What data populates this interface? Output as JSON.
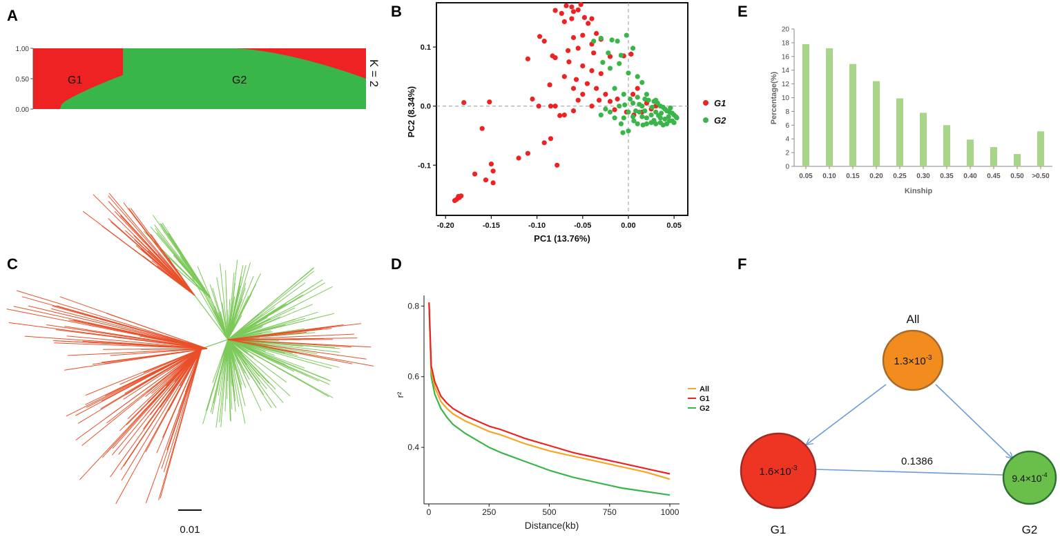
{
  "panels": {
    "A": "A",
    "B": "B",
    "C": "C",
    "D": "D",
    "E": "E",
    "F": "F"
  },
  "colors": {
    "g1": "#ee2222",
    "g2": "#3ab54a",
    "all": "#f5a623",
    "tree_red": "#e8502a",
    "tree_green": "#7cc95a",
    "bar": "#a8d58a",
    "node_all": "#f28c1e",
    "node_g1": "#ee3524",
    "node_g2": "#6abf4b",
    "edge": "#6a9bd8"
  },
  "structure": {
    "type": "stacked-bar",
    "k_label": "K = 2",
    "yticks": [
      "1.00",
      "0.50",
      "0.00"
    ],
    "group_labels": [
      "G1",
      "G2"
    ],
    "g1_fraction": 0.27
  },
  "tree": {
    "scale_label": "0.01"
  },
  "chart_data": [
    {
      "panel": "B",
      "type": "scatter",
      "xlabel": "PC1 (13.76%)",
      "ylabel": "PC2 (8.34%)",
      "xlim": [
        -0.21,
        0.065
      ],
      "ylim": [
        -0.185,
        0.175
      ],
      "xticks": [
        -0.2,
        -0.15,
        -0.1,
        -0.05,
        0.0,
        0.05
      ],
      "xtick_labels": [
        "-0.20",
        "-0.15",
        "-0.10",
        "-0.05",
        "0.00",
        "0.05"
      ],
      "yticks": [
        0.1,
        0.0,
        -0.1
      ],
      "ytick_labels": [
        "0.1",
        "0.0",
        "-0.1"
      ],
      "legend": [
        "G1",
        "G2"
      ],
      "series": [
        {
          "name": "G1",
          "points": [
            [
              -0.068,
              0.17
            ],
            [
              -0.062,
              0.168
            ],
            [
              -0.052,
              0.172
            ],
            [
              -0.06,
              0.16
            ],
            [
              -0.08,
              0.162
            ],
            [
              -0.055,
              0.163
            ],
            [
              -0.073,
              0.157
            ],
            [
              -0.048,
              0.15
            ],
            [
              -0.062,
              0.148
            ],
            [
              -0.04,
              0.148
            ],
            [
              -0.07,
              0.143
            ],
            [
              -0.044,
              0.14
            ],
            [
              -0.035,
              0.123
            ],
            [
              -0.05,
              0.12
            ],
            [
              -0.06,
              0.116
            ],
            [
              -0.03,
              0.113
            ],
            [
              -0.04,
              0.105
            ],
            [
              -0.055,
              0.098
            ],
            [
              -0.038,
              0.09
            ],
            [
              -0.02,
              0.084
            ],
            [
              -0.083,
              0.085
            ],
            [
              -0.066,
              0.094
            ],
            [
              -0.092,
              0.11
            ],
            [
              -0.097,
              0.118
            ],
            [
              -0.11,
              0.08
            ],
            [
              -0.08,
              0.082
            ],
            [
              -0.065,
              0.075
            ],
            [
              -0.05,
              0.068
            ],
            [
              -0.04,
              0.06
            ],
            [
              -0.03,
              0.055
            ],
            [
              -0.057,
              0.045
            ],
            [
              -0.045,
              0.038
            ],
            [
              -0.035,
              0.03
            ],
            [
              -0.086,
              0.036
            ],
            [
              -0.07,
              0.05
            ],
            [
              -0.06,
              0.03
            ],
            [
              -0.05,
              0.02
            ],
            [
              -0.025,
              0.02
            ],
            [
              -0.032,
              0.01
            ],
            [
              -0.02,
              0.008
            ],
            [
              -0.012,
              0.012
            ],
            [
              -0.015,
              -0.006
            ],
            [
              -0.04,
              0.0
            ],
            [
              -0.055,
              0.01
            ],
            [
              -0.06,
              -0.008
            ],
            [
              -0.08,
              0.0
            ],
            [
              -0.085,
              0.0
            ],
            [
              -0.098,
              0.0
            ],
            [
              -0.07,
              -0.015
            ],
            [
              -0.075,
              -0.016
            ],
            [
              -0.105,
              0.012
            ],
            [
              -0.18,
              0.006
            ],
            [
              -0.152,
              0.007
            ],
            [
              -0.16,
              -0.038
            ],
            [
              -0.12,
              -0.088
            ],
            [
              -0.11,
              -0.08
            ],
            [
              -0.092,
              -0.062
            ],
            [
              -0.085,
              -0.055
            ],
            [
              -0.078,
              -0.1
            ],
            [
              -0.15,
              -0.098
            ],
            [
              -0.148,
              -0.11
            ],
            [
              -0.156,
              -0.125
            ],
            [
              -0.148,
              -0.13
            ],
            [
              -0.168,
              -0.115
            ],
            [
              -0.185,
              -0.155
            ],
            [
              -0.188,
              -0.158
            ],
            [
              -0.19,
              -0.16
            ],
            [
              -0.183,
              -0.152
            ],
            [
              -0.186,
              -0.153
            ],
            [
              0.005,
              0.02
            ],
            [
              0.01,
              0.03
            ],
            [
              0.02,
              0.005
            ],
            [
              0.03,
              0.0
            ],
            [
              0.015,
              -0.01
            ],
            [
              -0.005,
              0.085
            ],
            [
              0.003,
              0.088
            ],
            [
              -0.002,
              -0.01
            ],
            [
              0.006,
              -0.015
            ],
            [
              0.025,
              -0.005
            ]
          ]
        },
        {
          "name": "G2",
          "points": [
            [
              -0.038,
              0.11
            ],
            [
              -0.03,
              0.115
            ],
            [
              -0.018,
              0.112
            ],
            [
              -0.012,
              0.11
            ],
            [
              -0.002,
              0.12
            ],
            [
              0.005,
              0.098
            ],
            [
              -0.008,
              0.086
            ],
            [
              -0.022,
              0.09
            ],
            [
              -0.028,
              0.074
            ],
            [
              -0.02,
              0.064
            ],
            [
              -0.01,
              0.072
            ],
            [
              0.0,
              0.056
            ],
            [
              0.01,
              0.05
            ],
            [
              0.015,
              0.04
            ],
            [
              -0.015,
              0.03
            ],
            [
              -0.005,
              0.02
            ],
            [
              0.002,
              0.012
            ],
            [
              0.01,
              0.015
            ],
            [
              0.018,
              0.012
            ],
            [
              0.022,
              0.01
            ],
            [
              0.028,
              0.008
            ],
            [
              0.032,
              0.005
            ],
            [
              0.035,
              0.0
            ],
            [
              0.038,
              -0.002
            ],
            [
              0.04,
              -0.005
            ],
            [
              0.042,
              -0.008
            ],
            [
              0.045,
              -0.01
            ],
            [
              0.048,
              -0.012
            ],
            [
              0.05,
              -0.015
            ],
            [
              0.052,
              -0.018
            ],
            [
              0.03,
              -0.01
            ],
            [
              0.025,
              -0.015
            ],
            [
              0.035,
              -0.02
            ],
            [
              0.04,
              -0.022
            ],
            [
              0.045,
              -0.025
            ],
            [
              0.05,
              -0.028
            ],
            [
              0.02,
              -0.02
            ],
            [
              0.015,
              -0.018
            ],
            [
              0.012,
              -0.01
            ],
            [
              0.008,
              -0.008
            ],
            [
              0.005,
              -0.018
            ],
            [
              0.0,
              -0.01
            ],
            [
              -0.005,
              -0.02
            ],
            [
              -0.008,
              -0.03
            ],
            [
              -0.015,
              -0.02
            ],
            [
              -0.02,
              -0.01
            ],
            [
              -0.025,
              -0.005
            ],
            [
              -0.03,
              -0.015
            ],
            [
              0.01,
              -0.03
            ],
            [
              0.02,
              -0.03
            ],
            [
              0.03,
              -0.03
            ],
            [
              0.035,
              -0.028
            ],
            [
              0.042,
              -0.03
            ],
            [
              0.048,
              -0.025
            ],
            [
              0.053,
              -0.02
            ],
            [
              0.036,
              -0.012
            ],
            [
              0.026,
              -0.002
            ],
            [
              0.03,
              0.01
            ],
            [
              0.02,
              0.02
            ],
            [
              0.015,
              0.0
            ],
            [
              0.005,
              0.005
            ],
            [
              -0.004,
              0.002
            ],
            [
              -0.01,
              0.0
            ],
            [
              0.028,
              -0.024
            ],
            [
              0.033,
              -0.016
            ],
            [
              0.044,
              -0.018
            ],
            [
              0.038,
              -0.032
            ],
            [
              0.025,
              -0.028
            ],
            [
              0.018,
              -0.008
            ],
            [
              0.012,
              0.003
            ],
            [
              0.0,
              -0.042
            ],
            [
              -0.006,
              -0.045
            ],
            [
              0.006,
              -0.025
            ],
            [
              0.016,
              -0.032
            ],
            [
              0.046,
              -0.003
            ]
          ]
        }
      ]
    },
    {
      "panel": "D",
      "type": "line",
      "xlabel": "Distance(kb)",
      "ylabel": "r²",
      "xlim": [
        -20,
        1040
      ],
      "ylim": [
        0.24,
        0.83
      ],
      "xticks": [
        0,
        250,
        500,
        750,
        1000
      ],
      "xtick_labels": [
        "0",
        "250",
        "500",
        "750",
        "1000"
      ],
      "yticks": [
        0.4,
        0.6,
        0.8
      ],
      "ytick_labels": [
        "0.4",
        "0.6",
        "0.8"
      ],
      "legend": [
        "All",
        "G1",
        "G2"
      ],
      "series": [
        {
          "name": "All",
          "x": [
            1,
            10,
            25,
            50,
            75,
            100,
            150,
            200,
            250,
            300,
            400,
            500,
            600,
            700,
            800,
            900,
            1000
          ],
          "values": [
            0.81,
            0.62,
            0.57,
            0.53,
            0.51,
            0.495,
            0.475,
            0.46,
            0.445,
            0.435,
            0.41,
            0.39,
            0.375,
            0.36,
            0.345,
            0.33,
            0.31
          ]
        },
        {
          "name": "G1",
          "x": [
            1,
            10,
            25,
            50,
            75,
            100,
            150,
            200,
            250,
            300,
            400,
            500,
            600,
            700,
            800,
            900,
            1000
          ],
          "values": [
            0.81,
            0.63,
            0.585,
            0.545,
            0.525,
            0.51,
            0.49,
            0.475,
            0.46,
            0.45,
            0.425,
            0.405,
            0.385,
            0.37,
            0.355,
            0.34,
            0.325
          ]
        },
        {
          "name": "G2",
          "x": [
            1,
            10,
            25,
            50,
            75,
            100,
            150,
            200,
            250,
            300,
            400,
            500,
            600,
            700,
            800,
            900,
            1000
          ],
          "values": [
            0.81,
            0.6,
            0.55,
            0.51,
            0.485,
            0.465,
            0.44,
            0.42,
            0.4,
            0.385,
            0.36,
            0.335,
            0.315,
            0.3,
            0.285,
            0.275,
            0.265
          ]
        }
      ]
    },
    {
      "panel": "E",
      "type": "bar",
      "xlabel": "Kinship",
      "ylabel": "Percentage(%)",
      "ylim": [
        0,
        20
      ],
      "yticks": [
        0,
        2,
        4,
        6,
        8,
        10,
        12,
        14,
        16,
        18,
        20
      ],
      "ytick_labels": [
        "0",
        "2",
        "4",
        "6",
        "8",
        "10",
        "12",
        "14",
        "16",
        "18",
        "20"
      ],
      "categories": [
        "0.05",
        "0.10",
        "0.15",
        "0.20",
        "0.25",
        "0.30",
        "0.35",
        "0.40",
        "0.45",
        "0.50",
        ">0.50"
      ],
      "values": [
        17.8,
        17.2,
        14.9,
        12.4,
        9.9,
        7.8,
        6.0,
        3.9,
        2.8,
        1.8,
        5.1
      ]
    }
  ],
  "network": {
    "nodes": {
      "all": {
        "label": "All",
        "value_base": "1.3×10",
        "value_exp": "-3"
      },
      "g1": {
        "label": "G1",
        "value_base": "1.6×10",
        "value_exp": "-3"
      },
      "g2": {
        "label": "G2",
        "value_base": "9.4×10",
        "value_exp": "-4"
      }
    },
    "edge_label": "0.1386"
  }
}
